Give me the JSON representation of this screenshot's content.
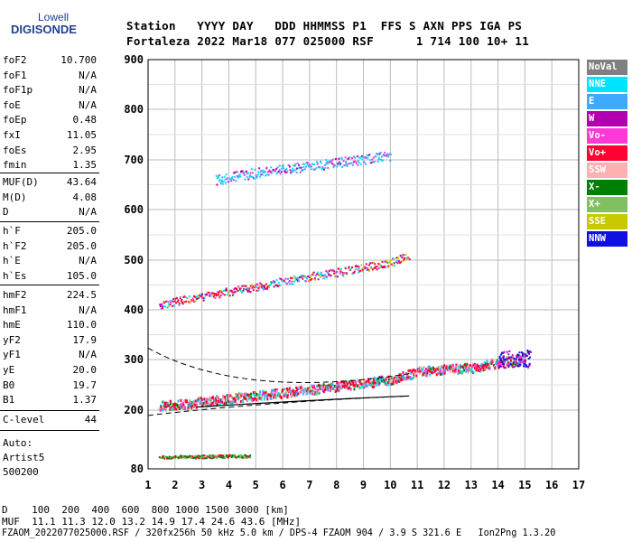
{
  "logo": {
    "line1": "Lowell",
    "line2": "DIGISONDE"
  },
  "header": {
    "row1": "Station   YYYY DAY   DDD HHMMSS P1  FFS S AXN PPS IGA PS",
    "row2": "Fortaleza 2022 Mar18 077 025000 RSF      1 714 100 10+ 11"
  },
  "params_group1": [
    {
      "name": "foF2",
      "value": "10.700"
    },
    {
      "name": "foF1",
      "value": "N/A"
    },
    {
      "name": "foF1p",
      "value": "N/A"
    },
    {
      "name": "foE",
      "value": "N/A"
    },
    {
      "name": "foEp",
      "value": "0.48"
    },
    {
      "name": "fxI",
      "value": "11.05"
    },
    {
      "name": "foEs",
      "value": "2.95"
    },
    {
      "name": "fmin",
      "value": "1.35"
    }
  ],
  "params_group2": [
    {
      "name": "MUF(D)",
      "value": "43.64"
    },
    {
      "name": "M(D)",
      "value": "4.08"
    },
    {
      "name": "D",
      "value": "N/A"
    }
  ],
  "params_group3": [
    {
      "name": "h`F",
      "value": "205.0"
    },
    {
      "name": "h`F2",
      "value": "205.0"
    },
    {
      "name": "h`E",
      "value": "N/A"
    },
    {
      "name": "h`Es",
      "value": "105.0"
    }
  ],
  "params_group4": [
    {
      "name": "hmF2",
      "value": "224.5"
    },
    {
      "name": "hmF1",
      "value": "N/A"
    },
    {
      "name": "hmE",
      "value": "110.0"
    },
    {
      "name": "yF2",
      "value": "17.9"
    },
    {
      "name": "yF1",
      "value": "N/A"
    },
    {
      "name": "yE",
      "value": "20.0"
    },
    {
      "name": "B0",
      "value": "19.7"
    },
    {
      "name": "B1",
      "value": "1.37"
    }
  ],
  "params_group5": [
    {
      "name": "C-level",
      "value": "44"
    }
  ],
  "autoscaling": {
    "line1": "Auto:",
    "line2": "Artist5",
    "line3": "500200"
  },
  "legend": [
    {
      "label": "NoVal",
      "color": "#808080"
    },
    {
      "label": "NNE",
      "color": "#00e5ff"
    },
    {
      "label": "E",
      "color": "#3fa8ff"
    },
    {
      "label": "W",
      "color": "#b000b0"
    },
    {
      "label": "Vo-",
      "color": "#ff38d8"
    },
    {
      "label": "Vo+",
      "color": "#ff0030"
    },
    {
      "label": "SSW",
      "color": "#ffb0b0"
    },
    {
      "label": "X-",
      "color": "#008000"
    },
    {
      "label": "X+",
      "color": "#80c060"
    },
    {
      "label": "SSE",
      "color": "#c8c800"
    },
    {
      "label": "NNW",
      "color": "#1010e0"
    }
  ],
  "footer": {
    "line1": "D    100  200  400  600  800 1000 1500 3000 [km]",
    "line2": "MUF  11.1 11.3 12.0 13.2 14.9 17.4 24.6 43.6 [MHz]",
    "line3": "FZAOM_2022077025000.RSF / 320fx256h 50 kHz 5.0 km / DPS-4 FZAOM 904 / 3.9 S 321.6 E   Ion2Png 1.3.20"
  },
  "chart_data": {
    "type": "scatter",
    "xlim": [
      1,
      17
    ],
    "ylim": [
      80,
      900
    ],
    "x_ticks": [
      1,
      2,
      3,
      4,
      5,
      6,
      7,
      8,
      9,
      10,
      11,
      12,
      13,
      14,
      15,
      16,
      17
    ],
    "y_ticks": [
      80,
      200,
      300,
      400,
      500,
      600,
      700,
      800,
      900
    ],
    "grid": true,
    "legend_position": "right",
    "series": [
      {
        "trace": "F-layer O-trace",
        "points": [
          [
            1.4,
            210
          ],
          [
            2,
            212
          ],
          [
            3,
            218
          ],
          [
            4,
            224
          ],
          [
            5,
            230
          ],
          [
            6,
            236
          ],
          [
            7,
            242
          ],
          [
            8,
            248
          ],
          [
            9,
            255
          ],
          [
            10,
            262
          ],
          [
            10.7,
            272
          ],
          [
            11,
            278
          ],
          [
            12,
            282
          ],
          [
            13,
            285
          ],
          [
            13.5,
            290
          ],
          [
            14,
            295
          ],
          [
            14.5,
            300
          ],
          [
            15,
            305
          ]
        ]
      },
      {
        "trace": "F-layer 2nd hop",
        "points": [
          [
            1.4,
            410
          ],
          [
            2,
            418
          ],
          [
            3,
            428
          ],
          [
            4,
            438
          ],
          [
            5,
            448
          ],
          [
            6,
            458
          ],
          [
            7,
            468
          ],
          [
            8,
            476
          ],
          [
            9,
            486
          ],
          [
            10,
            496
          ],
          [
            10.7,
            510
          ]
        ]
      },
      {
        "trace": "F-layer 3rd hop",
        "points": [
          [
            3.5,
            660
          ],
          [
            4,
            665
          ],
          [
            5,
            675
          ],
          [
            6,
            682
          ],
          [
            7,
            688
          ],
          [
            8,
            695
          ],
          [
            9,
            702
          ],
          [
            10,
            710
          ]
        ]
      },
      {
        "trace": "Es layer",
        "points": [
          [
            1.4,
            105
          ],
          [
            2,
            106
          ],
          [
            3,
            106
          ],
          [
            4,
            107
          ],
          [
            4.8,
            107
          ]
        ]
      }
    ]
  }
}
